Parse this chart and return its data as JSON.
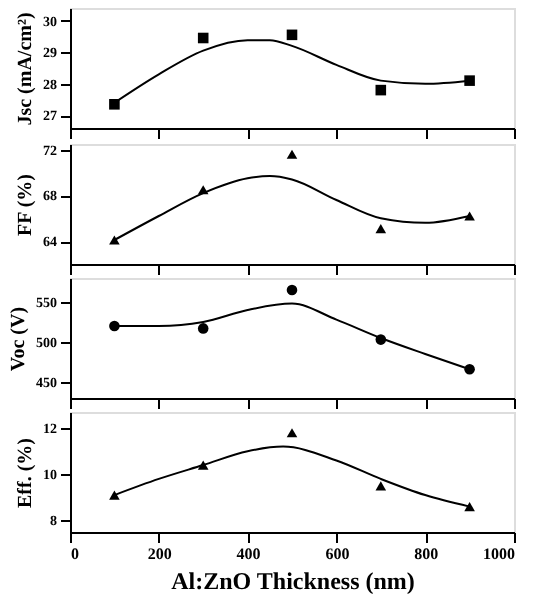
{
  "chart_data": [
    {
      "type": "scatter",
      "ylabel": "Jsc (mA/cm²)",
      "x": [
        100,
        300,
        500,
        700,
        900
      ],
      "xlim": [
        0,
        1000
      ],
      "xticks": [
        0,
        200,
        400,
        600,
        800,
        1000
      ],
      "ylim": [
        26.6,
        30.4
      ],
      "yticks": [
        27,
        28,
        29,
        30
      ],
      "tick_labels": "y",
      "series": [
        {
          "marker": "square",
          "color": "#000000",
          "values": [
            27.35,
            29.45,
            29.55,
            27.8,
            28.1
          ]
        },
        {
          "type": "line",
          "marker": "none",
          "color": "#000000",
          "x": [
            100,
            200,
            300,
            400,
            450,
            500,
            600,
            700,
            800,
            900
          ],
          "values": [
            27.4,
            28.3,
            29.05,
            29.38,
            29.38,
            29.2,
            28.6,
            28.1,
            28.0,
            28.1
          ]
        }
      ]
    },
    {
      "type": "scatter",
      "ylabel": "FF (%)",
      "x": [
        100,
        300,
        500,
        700,
        900
      ],
      "xlim": [
        0,
        1000
      ],
      "xticks": [
        0,
        200,
        400,
        600,
        800,
        1000
      ],
      "ylim": [
        62.0,
        72.5
      ],
      "yticks": [
        64,
        68,
        72
      ],
      "tick_labels": "y",
      "series": [
        {
          "marker": "triangle",
          "color": "#000000",
          "values": [
            64.1,
            68.5,
            71.6,
            65.1,
            66.2
          ]
        },
        {
          "type": "line",
          "marker": "none",
          "color": "#000000",
          "x": [
            100,
            200,
            300,
            400,
            450,
            500,
            600,
            700,
            800,
            900
          ],
          "values": [
            64.1,
            66.2,
            68.2,
            69.5,
            69.7,
            69.4,
            67.6,
            66.0,
            65.6,
            66.2
          ]
        }
      ]
    },
    {
      "type": "scatter",
      "ylabel": "Voc (V)",
      "x": [
        100,
        300,
        500,
        700,
        900
      ],
      "xlim": [
        0,
        1000
      ],
      "xticks": [
        0,
        200,
        400,
        600,
        800,
        1000
      ],
      "ylim": [
        430,
        580
      ],
      "yticks": [
        450,
        500,
        550
      ],
      "tick_labels": "y",
      "series": [
        {
          "marker": "circle",
          "color": "#000000",
          "values": [
            520,
            517,
            565,
            503,
            466
          ]
        },
        {
          "type": "line",
          "marker": "none",
          "color": "#000000",
          "x": [
            100,
            200,
            300,
            400,
            500,
            600,
            700,
            800,
            900
          ],
          "values": [
            520,
            520,
            525,
            540,
            548,
            528,
            505,
            485,
            466
          ]
        }
      ]
    },
    {
      "type": "scatter",
      "ylabel": "Eff. (%)",
      "xlabel": "Al:ZnO Thickness (nm)",
      "x": [
        100,
        300,
        500,
        700,
        900
      ],
      "xlim": [
        0,
        1000
      ],
      "xticks": [
        0,
        200,
        400,
        600,
        800,
        1000
      ],
      "ylim": [
        7.5,
        12.7
      ],
      "yticks": [
        8,
        10,
        12
      ],
      "series": [
        {
          "marker": "triangle",
          "color": "#000000",
          "values": [
            9.1,
            10.4,
            11.8,
            9.5,
            8.6
          ]
        },
        {
          "type": "line",
          "marker": "none",
          "color": "#000000",
          "x": [
            100,
            200,
            300,
            400,
            480,
            600,
            700,
            800,
            900
          ],
          "values": [
            9.1,
            9.8,
            10.4,
            11.0,
            11.2,
            10.6,
            9.8,
            9.1,
            8.6
          ]
        }
      ]
    }
  ]
}
